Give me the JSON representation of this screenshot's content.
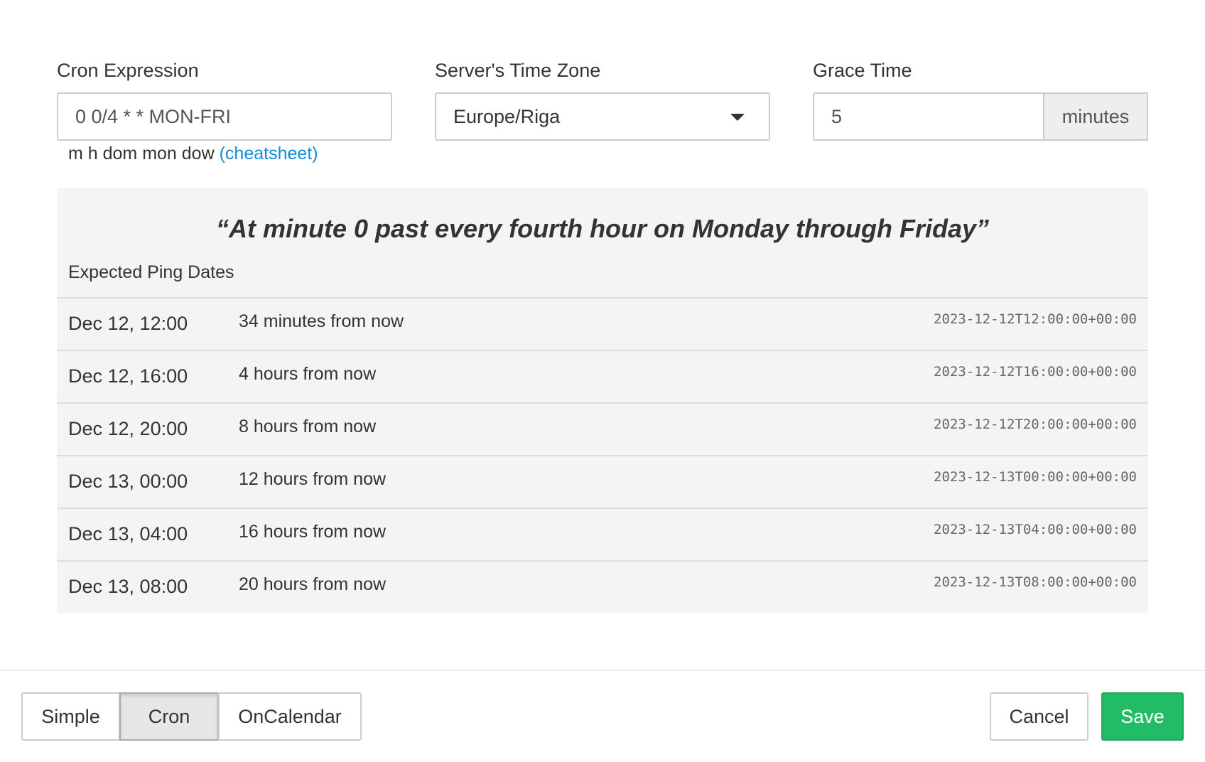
{
  "cron": {
    "label": "Cron Expression",
    "value": "0 0/4 * * MON-FRI",
    "help": "m h dom mon dow",
    "cheatsheet": "(cheatsheet)"
  },
  "timezone": {
    "label": "Server's Time Zone",
    "value": "Europe/Riga"
  },
  "grace": {
    "label": "Grace Time",
    "value": "5",
    "unit": "minutes"
  },
  "description": "“At minute 0 past every fourth hour on Monday through Friday”",
  "expected_title": "Expected Ping Dates",
  "rows": [
    {
      "date": "Dec 12, 12:00",
      "relative": "34 minutes from now",
      "iso": "2023-12-12T12:00:00+00:00"
    },
    {
      "date": "Dec 12, 16:00",
      "relative": "4 hours from now",
      "iso": "2023-12-12T16:00:00+00:00"
    },
    {
      "date": "Dec 12, 20:00",
      "relative": "8 hours from now",
      "iso": "2023-12-12T20:00:00+00:00"
    },
    {
      "date": "Dec 13, 00:00",
      "relative": "12 hours from now",
      "iso": "2023-12-13T00:00:00+00:00"
    },
    {
      "date": "Dec 13, 04:00",
      "relative": "16 hours from now",
      "iso": "2023-12-13T04:00:00+00:00"
    },
    {
      "date": "Dec 13, 08:00",
      "relative": "20 hours from now",
      "iso": "2023-12-13T08:00:00+00:00"
    }
  ],
  "modes": {
    "simple": "Simple",
    "cron": "Cron",
    "oncalendar": "OnCalendar",
    "active": "Cron"
  },
  "actions": {
    "cancel": "Cancel",
    "save": "Save"
  },
  "colors": {
    "save": "#22bc66",
    "link": "#0d8ddb"
  }
}
